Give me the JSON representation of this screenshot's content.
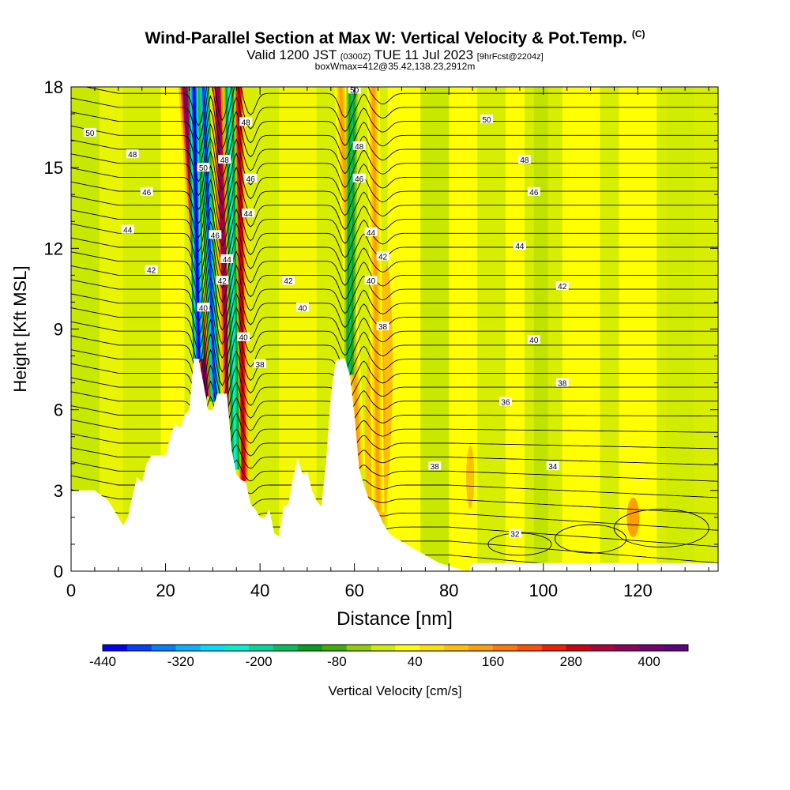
{
  "title": {
    "main": "Wind-Parallel Section at Max W: Vertical Velocity & Pot.Temp.",
    "main_sup": "(C)",
    "line2_a": "Valid 1200 JST",
    "line2_small1": "(0300Z)",
    "line2_b": "TUE 11 Jul 2023",
    "line2_small2": "[9hrFcst@2204z]",
    "line3": "boxWmax=412@35.42,138.23,2912m"
  },
  "chart_data": {
    "type": "heatmap",
    "xlabel": "Distance [nm]",
    "ylabel": "Height [Kft MSL]",
    "xlim": [
      0,
      137
    ],
    "ylim": [
      0,
      18
    ],
    "x_ticks": [
      0,
      20,
      40,
      60,
      80,
      100,
      120
    ],
    "y_ticks": [
      0,
      3,
      6,
      9,
      12,
      15,
      18
    ],
    "colorbar": {
      "label": "Vertical Velocity [cm/s]",
      "tick_labels": [
        -440,
        -320,
        -200,
        -80,
        40,
        160,
        280,
        400
      ],
      "colors": [
        "#0000ff",
        "#0040ff",
        "#0080ff",
        "#00b4ff",
        "#00dcff",
        "#00f0d0",
        "#00d89a",
        "#00c060",
        "#00a020",
        "#40b000",
        "#90d000",
        "#d0ec00",
        "#ffff00",
        "#ffe000",
        "#ffc000",
        "#ffa000",
        "#ff7800",
        "#ff5000",
        "#f02000",
        "#d00010",
        "#b00040",
        "#900060",
        "#780070",
        "#600080"
      ]
    },
    "terrain_profile": {
      "distance": [
        0,
        5,
        8,
        11,
        12,
        13,
        14,
        15,
        16,
        17,
        18,
        20,
        21,
        22,
        23,
        24,
        25,
        26,
        27,
        28,
        29,
        30,
        31,
        32,
        33,
        34,
        35,
        36,
        37,
        38,
        39,
        40,
        41,
        42,
        43,
        44,
        45,
        46,
        47,
        48,
        49,
        50,
        51,
        52,
        53,
        54,
        55,
        56,
        57,
        58,
        59,
        60,
        61,
        62,
        63,
        64,
        65,
        66,
        67,
        68,
        69,
        70,
        72,
        74,
        76,
        78,
        80,
        82,
        84,
        85,
        137
      ],
      "height_kft": [
        3.0,
        3.0,
        2.6,
        1.7,
        2.0,
        2.8,
        3.5,
        3.3,
        4.0,
        4.3,
        4.3,
        4.3,
        5.0,
        5.5,
        5.3,
        5.8,
        6.0,
        7.9,
        7.9,
        7.0,
        6.0,
        6.0,
        6.6,
        6.6,
        6.6,
        4.5,
        3.6,
        3.4,
        3.3,
        2.5,
        2.3,
        2.0,
        2.0,
        2.3,
        1.4,
        1.3,
        2.4,
        2.5,
        3.5,
        4.2,
        3.6,
        3.7,
        3.0,
        2.6,
        2.4,
        4.1,
        6.5,
        7.8,
        7.9,
        7.9,
        7.3,
        5.8,
        3.8,
        3.2,
        2.7,
        2.5,
        2.2,
        1.8,
        1.5,
        1.3,
        1.2,
        1.1,
        0.9,
        0.7,
        0.5,
        0.3,
        0.2,
        0.1,
        0.0,
        0.3,
        0.3
      ]
    },
    "updraft_bands": [
      {
        "distance_base": 28.5,
        "distance_top": 24.0,
        "w_cm_s": 400
      },
      {
        "distance_base": 33.5,
        "distance_top": 31.0,
        "w_cm_s": 350
      },
      {
        "distance_base": 36.5,
        "distance_top": 35.5,
        "w_cm_s": 300
      },
      {
        "distance_base": 61.0,
        "distance_top": 57.0,
        "w_cm_s": 150
      },
      {
        "distance_base": 65.0,
        "distance_top": 64.0,
        "w_cm_s": 140
      }
    ],
    "downdraft_bands": [
      {
        "distance_base": 27.0,
        "distance_top": 26.0,
        "w_cm_s": -440
      },
      {
        "distance_base": 30.5,
        "distance_top": 28.0,
        "w_cm_s": -400
      },
      {
        "distance_base": 34.8,
        "distance_top": 33.5,
        "w_cm_s": -220
      },
      {
        "distance_base": 59.0,
        "distance_top": 59.5,
        "w_cm_s": -150
      }
    ],
    "isentrope_labels": [
      {
        "value": "50",
        "x": 4,
        "y": 16.3
      },
      {
        "value": "48",
        "x": 13,
        "y": 15.5
      },
      {
        "value": "46",
        "x": 16,
        "y": 14.1
      },
      {
        "value": "44",
        "x": 12,
        "y": 12.7
      },
      {
        "value": "42",
        "x": 17,
        "y": 11.2
      },
      {
        "value": "50",
        "x": 28,
        "y": 15.0
      },
      {
        "value": "48",
        "x": 32.5,
        "y": 15.3
      },
      {
        "value": "46",
        "x": 30.5,
        "y": 12.5
      },
      {
        "value": "44",
        "x": 33,
        "y": 11.6
      },
      {
        "value": "42",
        "x": 32,
        "y": 10.8
      },
      {
        "value": "40",
        "x": 28,
        "y": 9.8
      },
      {
        "value": "48",
        "x": 37,
        "y": 16.7
      },
      {
        "value": "46",
        "x": 38,
        "y": 14.6
      },
      {
        "value": "44",
        "x": 37.5,
        "y": 13.3
      },
      {
        "value": "40",
        "x": 36.5,
        "y": 8.7
      },
      {
        "value": "38",
        "x": 40,
        "y": 7.7
      },
      {
        "value": "42",
        "x": 46,
        "y": 10.8
      },
      {
        "value": "40",
        "x": 49,
        "y": 9.8
      },
      {
        "value": "50",
        "x": 60,
        "y": 17.9
      },
      {
        "value": "48",
        "x": 61,
        "y": 15.8
      },
      {
        "value": "46",
        "x": 61,
        "y": 14.6
      },
      {
        "value": "44",
        "x": 63.5,
        "y": 12.6
      },
      {
        "value": "42",
        "x": 66,
        "y": 11.7
      },
      {
        "value": "40",
        "x": 63.5,
        "y": 10.8
      },
      {
        "value": "38",
        "x": 66,
        "y": 9.1
      },
      {
        "value": "50",
        "x": 88,
        "y": 16.8
      },
      {
        "value": "48",
        "x": 96,
        "y": 15.3
      },
      {
        "value": "46",
        "x": 98,
        "y": 14.1
      },
      {
        "value": "44",
        "x": 95,
        "y": 12.1
      },
      {
        "value": "42",
        "x": 104,
        "y": 10.6
      },
      {
        "value": "40",
        "x": 98,
        "y": 8.6
      },
      {
        "value": "38",
        "x": 104,
        "y": 7.0
      },
      {
        "value": "36",
        "x": 92,
        "y": 6.3
      },
      {
        "value": "38",
        "x": 77,
        "y": 3.9
      },
      {
        "value": "34",
        "x": 102,
        "y": 3.9
      },
      {
        "value": "32",
        "x": 94,
        "y": 1.4
      }
    ],
    "grid": false,
    "legend": "colorbar-bottom"
  }
}
